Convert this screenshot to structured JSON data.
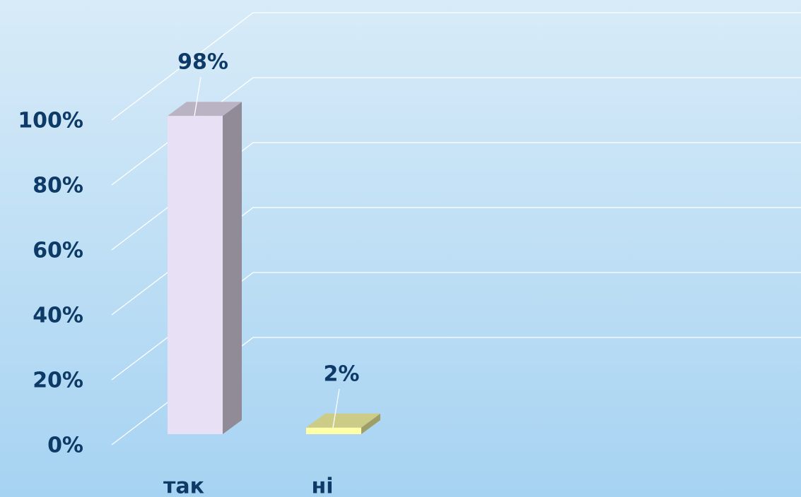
{
  "chart_data": {
    "type": "bar3d",
    "categories": [
      "так",
      "ні"
    ],
    "values": [
      98,
      2
    ],
    "value_labels": [
      "98%",
      "2%"
    ],
    "colors": [
      "#e8e0f4",
      "#ffffa8"
    ],
    "ylim": [
      0,
      100
    ],
    "yticks": [
      {
        "value": 0,
        "label": "0%"
      },
      {
        "value": 20,
        "label": "20%"
      },
      {
        "value": 40,
        "label": "40%"
      },
      {
        "value": 60,
        "label": "60%"
      },
      {
        "value": 80,
        "label": "80%"
      },
      {
        "value": 100,
        "label": "100%"
      }
    ],
    "grid": true
  }
}
